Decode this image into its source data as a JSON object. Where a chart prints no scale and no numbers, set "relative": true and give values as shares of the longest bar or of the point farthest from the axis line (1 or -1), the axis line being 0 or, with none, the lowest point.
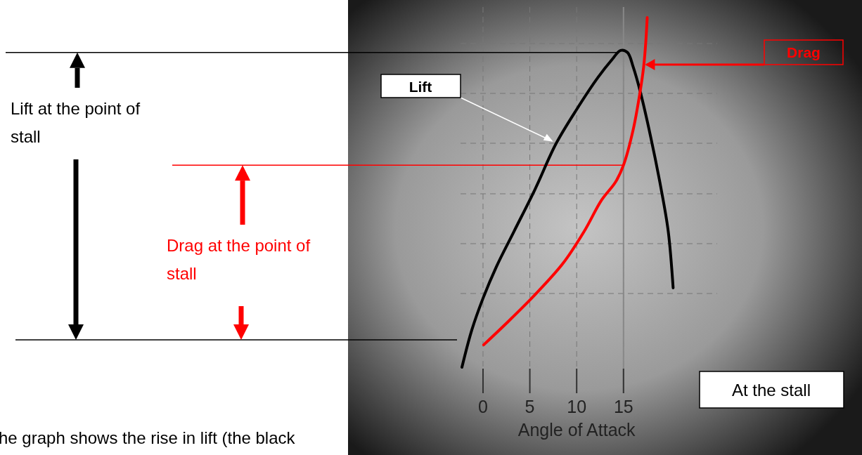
{
  "chart_data": {
    "type": "line",
    "relative": true,
    "xlabel": "Angle of Attack",
    "xlim": [
      -2.4,
      25
    ],
    "xticks": [
      0,
      5,
      10,
      15
    ],
    "grid": true,
    "legend": false,
    "marker": "none",
    "line_style": "solid",
    "series": [
      {
        "name": "Lift",
        "color": "#000000",
        "x": [
          -2.25,
          -1.2,
          0,
          1.42,
          3.3,
          5.54,
          7.79,
          10.04,
          12.28,
          13.78,
          14.68,
          15.43,
          16.03,
          16.78,
          17.9,
          19.03,
          19.78,
          20.3
        ],
        "values": [
          0,
          0.106,
          0.197,
          0.287,
          0.388,
          0.508,
          0.639,
          0.739,
          0.829,
          0.88,
          0.906,
          0.9,
          0.859,
          0.789,
          0.659,
          0.508,
          0.388,
          0.227
        ]
      },
      {
        "name": "Drag",
        "color": "#ff0000",
        "x": [
          0.07,
          2.55,
          5.54,
          8.54,
          10.79,
          12.66,
          14.16,
          15.0,
          16.03,
          16.78,
          17.15,
          17.38,
          17.53
        ],
        "values": [
          0.064,
          0.127,
          0.207,
          0.297,
          0.388,
          0.478,
          0.53,
          0.578,
          0.679,
          0.789,
          0.859,
          0.93,
          1.0
        ]
      }
    ],
    "ref_lines": [
      {
        "axis": "y",
        "value": 0.9,
        "color": "#000000"
      },
      {
        "axis": "y",
        "value": 0.578,
        "color": "#ff0000"
      },
      {
        "axis": "x",
        "value": 15,
        "color": "#888888"
      }
    ],
    "annotations": [
      "Lift at the point of stall",
      "Drag at the point of stall",
      "At the stall",
      "he graph shows the rise in lift (the black"
    ]
  }
}
